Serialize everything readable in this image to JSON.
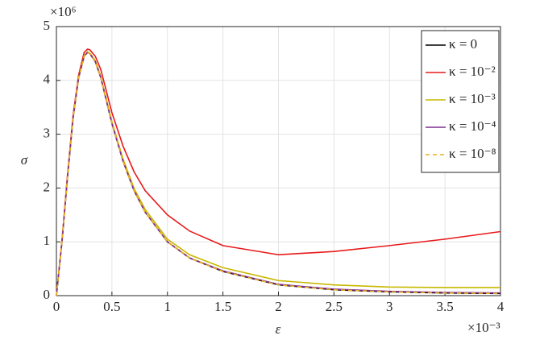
{
  "chart_data": {
    "type": "line",
    "xlabel": "ε",
    "ylabel": "σ",
    "x_multiplier": "×10⁻³",
    "y_multiplier": "×10⁶",
    "x": [
      0,
      0.05,
      0.1,
      0.15,
      0.2,
      0.25,
      0.28,
      0.3,
      0.35,
      0.4,
      0.5,
      0.6,
      0.7,
      0.8,
      1.0,
      1.2,
      1.5,
      2,
      2.5,
      3,
      3.5,
      4
    ],
    "series": [
      {
        "name": "κ = 0",
        "color": "#000000",
        "dashed": false,
        "values": [
          0,
          1.0,
          2.2,
          3.3,
          4.05,
          4.45,
          4.52,
          4.5,
          4.35,
          4.05,
          3.2,
          2.5,
          1.95,
          1.55,
          1.0,
          0.7,
          0.45,
          0.2,
          0.11,
          0.07,
          0.05,
          0.04
        ]
      },
      {
        "name": "κ = 10⁻²",
        "color": "#e8191b",
        "dashed": false,
        "values": [
          0,
          1.02,
          2.25,
          3.35,
          4.1,
          4.52,
          4.58,
          4.57,
          4.45,
          4.2,
          3.4,
          2.78,
          2.3,
          1.95,
          1.5,
          1.2,
          0.93,
          0.76,
          0.82,
          0.93,
          1.05,
          1.19
        ]
      },
      {
        "name": "κ = 10⁻³",
        "color": "#c8b800",
        "dashed": false,
        "values": [
          0,
          1.0,
          2.2,
          3.3,
          4.05,
          4.46,
          4.53,
          4.51,
          4.37,
          4.07,
          3.23,
          2.54,
          1.99,
          1.6,
          1.05,
          0.76,
          0.52,
          0.28,
          0.2,
          0.16,
          0.15,
          0.15
        ]
      },
      {
        "name": "κ = 10⁻⁴",
        "color": "#7e2f8e",
        "dashed": false,
        "values": [
          0,
          1.0,
          2.2,
          3.3,
          4.05,
          4.45,
          4.52,
          4.5,
          4.35,
          4.05,
          3.2,
          2.5,
          1.95,
          1.55,
          1.0,
          0.7,
          0.46,
          0.21,
          0.12,
          0.08,
          0.06,
          0.05
        ]
      },
      {
        "name": "κ = 10⁻⁸",
        "color": "#edb120",
        "dashed": true,
        "values": [
          0,
          1.0,
          2.2,
          3.3,
          4.05,
          4.45,
          4.52,
          4.5,
          4.35,
          4.05,
          3.2,
          2.5,
          1.95,
          1.55,
          1.0,
          0.7,
          0.45,
          0.2,
          0.11,
          0.07,
          0.05,
          0.04
        ]
      }
    ],
    "xlim": [
      0,
      4
    ],
    "xticks": [
      0,
      0.5,
      1,
      1.5,
      2,
      2.5,
      3,
      3.5,
      4
    ],
    "ylim": [
      0,
      5
    ],
    "yticks": [
      0,
      1,
      2,
      3,
      4,
      5
    ],
    "grid": true,
    "legend": "top-right"
  }
}
